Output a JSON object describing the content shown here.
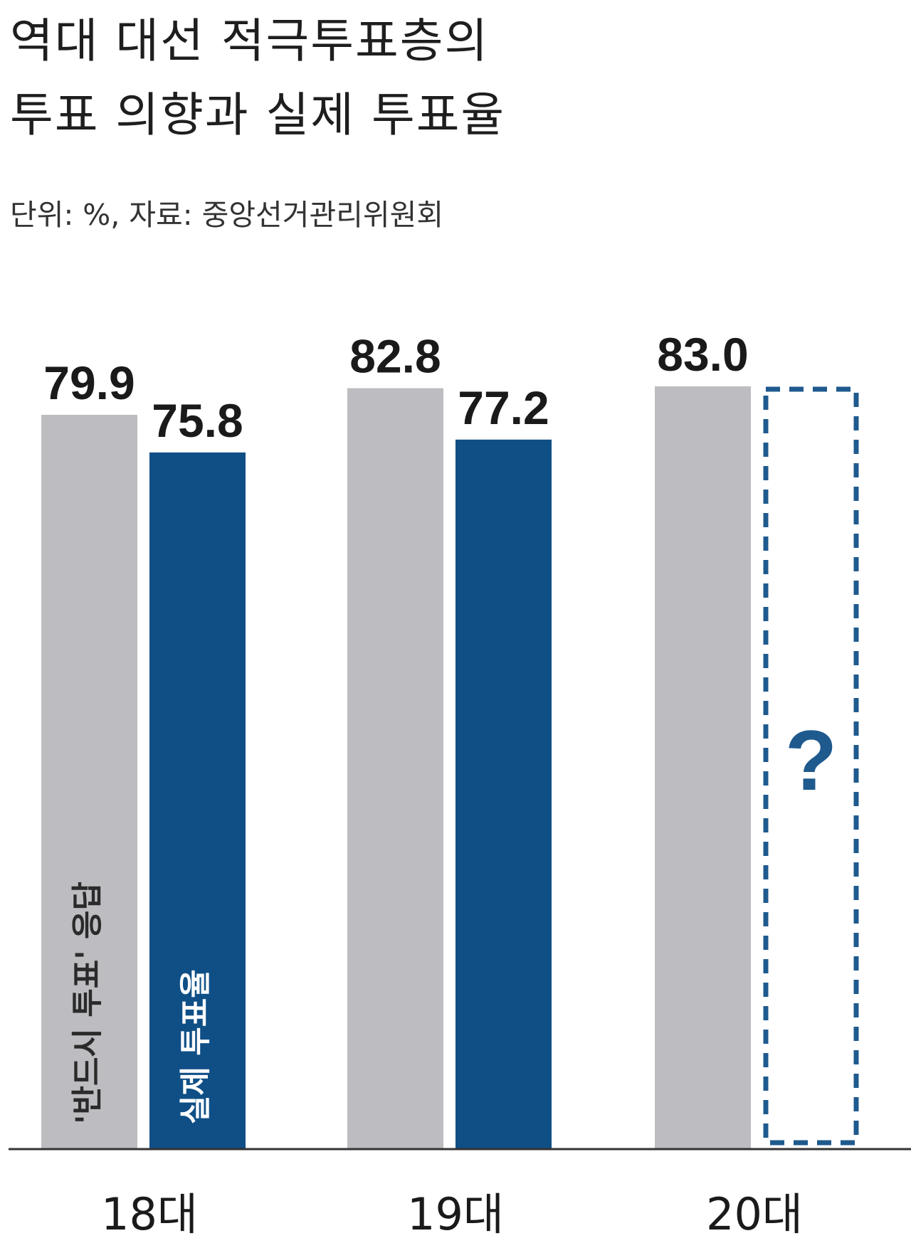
{
  "title_lines": [
    "역대 대선 적극투표층의",
    "투표 의향과 실제 투표율"
  ],
  "subtitle": "단위: %, 자료: 중앙선거관리위원회",
  "colors": {
    "intent": "#bdbdc1",
    "actual": "#0f4f86",
    "placeholder_border": "#1f5a8e",
    "axis": "#333333"
  },
  "chart_data": {
    "type": "bar",
    "categories": [
      "18대",
      "19대",
      "20대"
    ],
    "series": [
      {
        "name": "'반드시 투표' 응답",
        "values": [
          79.9,
          82.8,
          83.0
        ]
      },
      {
        "name": "실제 투표율",
        "values": [
          75.8,
          77.2,
          null
        ]
      }
    ],
    "value_labels": [
      [
        "79.9",
        "82.8",
        "83.0"
      ],
      [
        "75.8",
        "77.2",
        "?"
      ]
    ],
    "ylim": [
      0,
      90
    ]
  }
}
